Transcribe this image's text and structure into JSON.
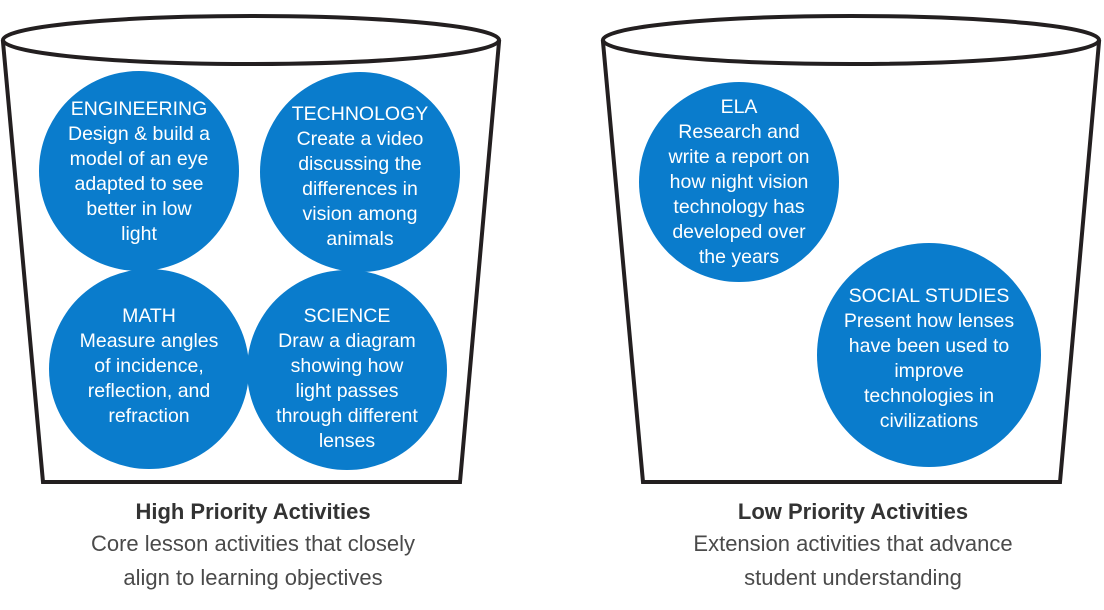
{
  "buckets": [
    {
      "title": "High Priority Activities",
      "description_lines": [
        "Core lesson activities that closely",
        "align to learning objectives"
      ],
      "activities": [
        {
          "lines": [
            "ENGINEERING",
            "Design & build a",
            "model of an eye",
            "adapted to see",
            "better in low",
            "light"
          ]
        },
        {
          "lines": [
            "TECHNOLOGY",
            "Create a video",
            "discussing the",
            "differences in",
            "vision among",
            "animals"
          ]
        },
        {
          "lines": [
            "MATH",
            "Measure angles",
            "of incidence,",
            "reflection, and",
            "refraction"
          ]
        },
        {
          "lines": [
            "SCIENCE",
            "Draw a diagram",
            "showing how",
            "light passes",
            "through different",
            "lenses"
          ]
        }
      ]
    },
    {
      "title": "Low Priority Activities",
      "description_lines": [
        "Extension activities that advance",
        "student understanding"
      ],
      "activities": [
        {
          "lines": [
            "ELA",
            "Research and",
            "write a report on",
            "how night vision",
            "technology has",
            "developed over",
            "the years"
          ]
        },
        {
          "lines": [
            "SOCIAL STUDIES",
            "Present how lenses",
            "have been used to",
            "improve",
            "technologies in",
            "civilizations"
          ]
        }
      ]
    }
  ],
  "colors": {
    "circle": "#0a7ccc",
    "outline": "#231f20",
    "text": "#ffffff"
  }
}
